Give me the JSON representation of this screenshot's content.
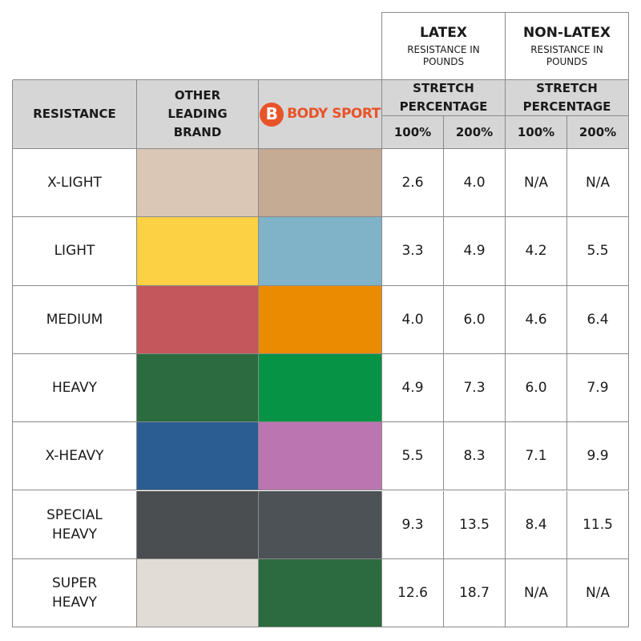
{
  "header": {
    "latex": {
      "title": "LATEX",
      "subtitle": "RESISTANCE IN POUNDS"
    },
    "non_latex": {
      "title": "NON-LATEX",
      "subtitle": "RESISTANCE IN POUNDS"
    }
  },
  "columns": {
    "resistance": "RESISTANCE",
    "other_brand": "OTHER LEADING BRAND",
    "logo": {
      "mark": "B",
      "text": "BODY SPORT"
    },
    "latex_stretch": "STRETCH PERCENTAGE",
    "non_latex_stretch": "STRETCH PERCENTAGE",
    "latex_percent": [
      "100%",
      "200%"
    ],
    "non_latex_percent": [
      "100%",
      "200%"
    ]
  },
  "rows": [
    {
      "resistance": "X-LIGHT",
      "other_color": "#dac7b5",
      "bodysport_color": "#c5aa94",
      "latex": [
        "2.6",
        "4.0"
      ],
      "non_latex": [
        "N/A",
        "N/A"
      ]
    },
    {
      "resistance": "LIGHT",
      "other_color": "#fcd144",
      "bodysport_color": "#80b3c8",
      "latex": [
        "3.3",
        "4.9"
      ],
      "non_latex": [
        "4.2",
        "5.5"
      ]
    },
    {
      "resistance": "MEDIUM",
      "other_color": "#c4575b",
      "bodysport_color": "#eb8b01",
      "latex": [
        "4.0",
        "6.0"
      ],
      "non_latex": [
        "4.6",
        "6.4"
      ]
    },
    {
      "resistance": "HEAVY",
      "other_color": "#2b6b3f",
      "bodysport_color": "#079346",
      "latex": [
        "4.9",
        "7.3"
      ],
      "non_latex": [
        "6.0",
        "7.9"
      ]
    },
    {
      "resistance": "X-HEAVY",
      "other_color": "#2b5d93",
      "bodysport_color": "#bb76b2",
      "latex": [
        "5.5",
        "8.3"
      ],
      "non_latex": [
        "7.1",
        "9.9"
      ]
    },
    {
      "resistance": "SPECIAL HEAVY",
      "other_color": "#4a4e51",
      "bodysport_color": "#4d5257",
      "latex": [
        "9.3",
        "13.5"
      ],
      "non_latex": [
        "8.4",
        "11.5"
      ]
    },
    {
      "resistance": "SUPER HEAVY",
      "other_color": "#e1ddd6",
      "bodysport_color": "#2b6b3f",
      "latex": [
        "12.6",
        "18.7"
      ],
      "non_latex": [
        "N/A",
        "N/A"
      ]
    }
  ]
}
